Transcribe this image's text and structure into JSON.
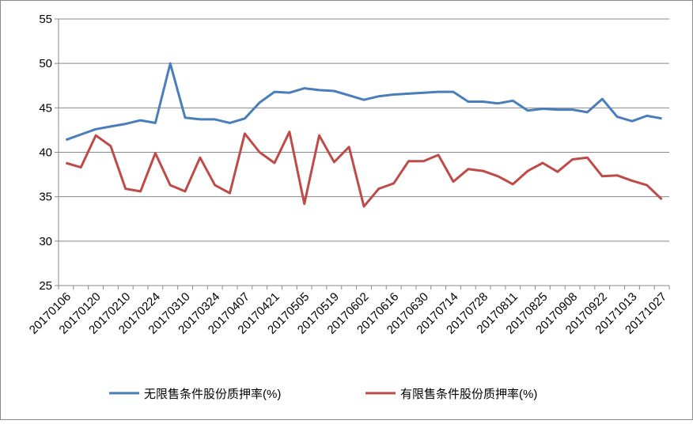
{
  "chart_data": {
    "type": "line",
    "categories": [
      "20170106",
      null,
      "20170120",
      null,
      "20170210",
      null,
      "20170224",
      null,
      "20170310",
      null,
      "20170324",
      null,
      "20170407",
      null,
      "20170421",
      null,
      "20170505",
      null,
      "20170519",
      null,
      "20170602",
      null,
      "20170616",
      null,
      "20170630",
      null,
      "20170714",
      null,
      "20170728",
      null,
      "20170811",
      null,
      "20170825",
      null,
      "20170908",
      null,
      "20170922",
      null,
      "20171013",
      null,
      "20171027"
    ],
    "series": [
      {
        "name": "无限售条件股份质押率(%)",
        "color": "#4a7ebb",
        "values": [
          41.4,
          42.0,
          42.6,
          42.9,
          43.2,
          43.6,
          43.3,
          50.0,
          43.9,
          43.7,
          43.7,
          43.3,
          43.8,
          45.6,
          46.8,
          46.7,
          47.2,
          47.0,
          46.9,
          46.4,
          45.9,
          46.3,
          46.5,
          46.6,
          46.7,
          46.8,
          46.8,
          45.7,
          45.7,
          45.5,
          45.8,
          44.7,
          44.9,
          44.8,
          44.8,
          44.5,
          46.0,
          44.0,
          43.5,
          44.1,
          43.8
        ]
      },
      {
        "name": "有限售条件股份质押率(%)",
        "color": "#be4b48",
        "values": [
          38.8,
          38.3,
          41.9,
          40.7,
          35.9,
          35.6,
          39.9,
          36.3,
          35.6,
          39.4,
          36.3,
          35.4,
          42.1,
          40.0,
          38.8,
          42.3,
          34.2,
          41.9,
          38.9,
          40.6,
          33.9,
          35.9,
          36.5,
          39.0,
          39.0,
          39.7,
          36.7,
          38.1,
          37.9,
          37.3,
          36.4,
          37.9,
          38.8,
          37.8,
          39.2,
          39.4,
          37.3,
          37.4,
          36.8,
          36.3,
          34.7
        ]
      }
    ],
    "ylim": [
      25,
      55
    ],
    "yticks": [
      25,
      30,
      35,
      40,
      45,
      50,
      55
    ],
    "grid": true,
    "legend": "bottom"
  }
}
